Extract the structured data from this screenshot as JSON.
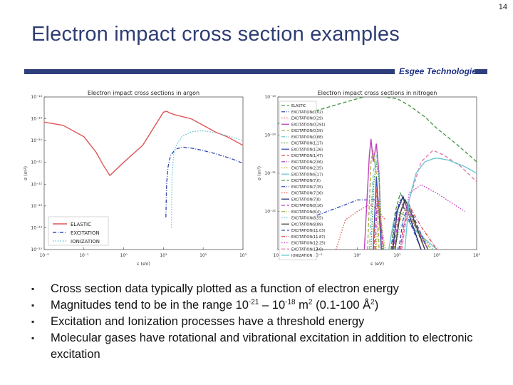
{
  "page": {
    "number": "14",
    "title": "Electron impact cross section examples",
    "brand": "Esgee Technologies"
  },
  "bullets": [
    {
      "text": "Cross section data typically plotted as a function of electron energy"
    },
    {
      "pre": "Magnitudes tend to be in the range 10",
      "sup1": "-21",
      "mid": " – 10",
      "sup2": "-18",
      "mid2": " m",
      "sup3": "2",
      "post": " (0.1-100 Å",
      "sup4": "2",
      "end": ")"
    },
    {
      "text": "Excitation and Ionization processes have a threshold energy"
    },
    {
      "text": "Molecular gases have rotational and vibrational excitation in addition to electronic excitation"
    }
  ],
  "chart_data": [
    {
      "type": "line",
      "title": "Electron impact cross sections in argon",
      "xlabel": "ε (eV)",
      "ylabel": "σ (m²)",
      "xscale": "log",
      "yscale": "log",
      "xlim": [
        0.01,
        1000
      ],
      "ylim": [
        1e-25,
        1e-18
      ],
      "xticks": [
        "10⁻²",
        "10⁻¹",
        "10⁰",
        "10¹",
        "10²",
        "10³"
      ],
      "yticks": [
        "10⁻¹⁸",
        "10⁻¹⁹",
        "10⁻²⁰",
        "10⁻²¹",
        "10⁻²²",
        "10⁻²³",
        "10⁻²⁴",
        "10⁻²⁵"
      ],
      "legend_position": "lower-left",
      "series": [
        {
          "name": "ELASTIC",
          "style": "solid",
          "color": "#e05555",
          "x": [
            0.01,
            0.03,
            0.1,
            0.2,
            0.3,
            0.45,
            1,
            3,
            10,
            12,
            15,
            20,
            50,
            100,
            200,
            400,
            1000
          ],
          "y": [
            7e-20,
            5e-20,
            1.5e-20,
            3e-21,
            8e-22,
            2.5e-22,
            1e-21,
            6e-21,
            2e-19,
            2.2e-19,
            1.8e-19,
            1.5e-19,
            1e-19,
            5e-20,
            2.5e-20,
            1.5e-20,
            6e-21
          ]
        },
        {
          "name": "EXCITATION",
          "style": "dashdot",
          "color": "#3b4fb8",
          "x": [
            11.5,
            12,
            13,
            15,
            20,
            30,
            50,
            100,
            200,
            500,
            1000
          ],
          "y": [
            3e-24,
            1e-22,
            6e-22,
            2e-21,
            4e-21,
            5e-21,
            4.5e-21,
            3.5e-21,
            2.5e-21,
            1.5e-21,
            9e-22
          ]
        },
        {
          "name": "IONIZATION",
          "style": "dotted",
          "color": "#6cc7d6",
          "x": [
            15.8,
            16.5,
            18,
            20,
            25,
            30,
            50,
            80,
            100,
            200,
            500,
            1000
          ],
          "y": [
            1e-24,
            3e-22,
            2e-21,
            5e-21,
            1e-20,
            1.6e-20,
            2.5e-20,
            2.8e-20,
            2.8e-20,
            2.3e-20,
            1.5e-20,
            1e-20
          ]
        }
      ]
    },
    {
      "type": "line",
      "title": "Electron impact cross sections in nitrogen",
      "xlabel": "ε (eV)",
      "ylabel": "σ (m²)",
      "xscale": "log",
      "yscale": "log",
      "xlim": [
        0.01,
        1000
      ],
      "ylim": [
        1e-22,
        1e-18
      ],
      "xticks": [
        "10⁻²",
        "10⁻¹",
        "10⁰",
        "10¹",
        "10²",
        "10³"
      ],
      "yticks": [
        "10⁻¹⁹",
        "10⁻²⁰",
        "10⁻²¹",
        "10⁻²²"
      ],
      "legend_position": "left",
      "series": [
        {
          "name": "ELASTIC",
          "style": "dashed",
          "color": "#4a9a4a",
          "x": [
            0.01,
            0.1,
            1,
            2,
            2.5,
            3,
            5,
            10,
            20,
            50,
            100,
            300,
            1000
          ],
          "y": [
            2e-19,
            4.5e-19,
            9e-19,
            1.1e-18,
            1.2e-18,
            1.1e-18,
            1e-18,
            9e-19,
            6e-19,
            3e-19,
            1.5e-19,
            6e-20,
            2e-20
          ]
        },
        {
          "name": "EXCITATION(0.02)",
          "style": "dashdot",
          "color": "#3b4fb8",
          "x": [
            0.02,
            0.05,
            0.1,
            0.5,
            1,
            3
          ],
          "y": [
            2e-22,
            5e-22,
            8e-22,
            1.5e-21,
            2e-21,
            2e-21
          ]
        },
        {
          "name": "EXCITATION(0.29)",
          "style": "dotted",
          "color": "#e05555",
          "x": [
            0.29,
            0.5,
            1,
            2,
            3,
            5
          ],
          "y": [
            1e-22,
            6e-22,
            1e-21,
            1.5e-21,
            1.2e-21,
            6e-22
          ]
        },
        {
          "name": "EXCITATION(0.291)",
          "style": "solid",
          "color": "#c040c0",
          "x": [
            1.5,
            2,
            2.2,
            2.5,
            3,
            3.5,
            4
          ],
          "y": [
            1e-22,
            3e-20,
            8e-20,
            2e-20,
            6e-20,
            1e-20,
            1e-22
          ]
        },
        {
          "name": "EXCITATION(0.59)",
          "style": "dashed",
          "color": "#b0b040",
          "x": [
            1.8,
            2.2,
            2.5,
            3,
            3.5
          ],
          "y": [
            1e-22,
            2e-20,
            4e-20,
            1e-20,
            1e-22
          ]
        },
        {
          "name": "EXCITATION(0.88)",
          "style": "dashdot",
          "color": "#6cc7d6",
          "x": [
            2,
            2.5,
            3,
            3.5,
            4
          ],
          "y": [
            1e-22,
            1e-20,
            3e-20,
            8e-21,
            1e-22
          ]
        },
        {
          "name": "EXCITATION(1.17)",
          "style": "dotted",
          "color": "#4a9a4a",
          "x": [
            2.2,
            2.6,
            3,
            3.6,
            4.2
          ],
          "y": [
            1e-22,
            6e-21,
            2e-20,
            5e-21,
            1e-22
          ]
        },
        {
          "name": "EXCITATION(1.26)",
          "style": "solid",
          "color": "#3b4fb8",
          "x": [
            2.5,
            3,
            3.5,
            4
          ],
          "y": [
            1e-22,
            8e-21,
            1e-21,
            1e-22
          ]
        },
        {
          "name": "EXCITATION(1.47)",
          "style": "dashed",
          "color": "#e05555",
          "x": [
            2.6,
            3,
            3.5,
            4.5
          ],
          "y": [
            1e-22,
            4e-21,
            1e-21,
            1e-22
          ]
        },
        {
          "name": "EXCITATION(2.06)",
          "style": "dashdot",
          "color": "#c040c0",
          "x": [
            2.8,
            3.2,
            3.8,
            4.6
          ],
          "y": [
            1e-22,
            3e-21,
            7e-22,
            1e-22
          ]
        },
        {
          "name": "EXCITATION(2.35)",
          "style": "dotted",
          "color": "#b0b040",
          "x": [
            3,
            3.5,
            4,
            5
          ],
          "y": [
            1e-22,
            2e-21,
            5e-22,
            1e-22
          ]
        },
        {
          "name": "EXCITATION(6.17)",
          "style": "solid",
          "color": "#6cc7d6",
          "x": [
            6.17,
            8,
            10,
            15,
            30,
            100
          ],
          "y": [
            1e-22,
            5e-22,
            1e-21,
            8e-22,
            3e-22,
            1e-22
          ]
        },
        {
          "name": "EXCITATION(7.0)",
          "style": "dashed",
          "color": "#4a9a4a",
          "x": [
            7,
            9,
            12,
            20,
            50
          ],
          "y": [
            1e-22,
            1e-21,
            3e-21,
            1e-21,
            1e-22
          ]
        },
        {
          "name": "EXCITATION(7.35)",
          "style": "dashdot",
          "color": "#3b4fb8",
          "x": [
            7.35,
            9,
            12,
            20,
            40
          ],
          "y": [
            1e-22,
            8e-22,
            2e-21,
            6e-22,
            1e-22
          ]
        },
        {
          "name": "EXCITATION(7.36)",
          "style": "dotted",
          "color": "#e05555",
          "x": [
            7.36,
            10,
            14,
            25,
            60
          ],
          "y": [
            1e-22,
            6e-22,
            1.5e-21,
            5e-22,
            1e-22
          ]
        },
        {
          "name": "EXCITATION(7.8)",
          "style": "solid",
          "color": "#2a2f7a",
          "x": [
            7.8,
            10,
            14,
            20,
            40
          ],
          "y": [
            1e-22,
            1e-21,
            2.5e-21,
            8e-22,
            1e-22
          ]
        },
        {
          "name": "EXCITATION(8.16)",
          "style": "dashed",
          "color": "#c040c0",
          "x": [
            8.16,
            11,
            15,
            25,
            60
          ],
          "y": [
            1e-22,
            7e-22,
            1.8e-21,
            6e-22,
            1e-22
          ]
        },
        {
          "name": "EXCITATION(8.4)",
          "style": "dashdot",
          "color": "#b0b040",
          "x": [
            8.4,
            11,
            16,
            30,
            70
          ],
          "y": [
            1e-22,
            5e-22,
            1.2e-21,
            4e-22,
            1e-22
          ]
        },
        {
          "name": "EXCITATION(8.55)",
          "style": "dotted",
          "color": "#6cc7d6",
          "x": [
            8.55,
            12,
            18,
            35,
            80
          ],
          "y": [
            1e-22,
            4e-22,
            1e-21,
            3e-22,
            1e-22
          ]
        },
        {
          "name": "EXCITATION(8.89)",
          "style": "solid",
          "color": "#444444",
          "x": [
            8.89,
            12,
            16,
            25,
            50
          ],
          "y": [
            1e-22,
            9e-22,
            2e-21,
            7e-22,
            1e-22
          ]
        },
        {
          "name": "EXCITATION(11.03)",
          "style": "dashed",
          "color": "#3b4fb8",
          "x": [
            11.03,
            14,
            20,
            30,
            60
          ],
          "y": [
            1e-22,
            6e-22,
            1.5e-21,
            5e-22,
            1e-22
          ]
        },
        {
          "name": "EXCITATION(11.87)",
          "style": "dashdot",
          "color": "#e05555",
          "x": [
            11.87,
            15,
            22,
            40,
            100
          ],
          "y": [
            1e-22,
            5e-22,
            1.2e-21,
            4e-22,
            1e-22
          ]
        },
        {
          "name": "EXCITATION(12.25)",
          "style": "dotted",
          "color": "#c040c0",
          "x": [
            12.25,
            20,
            40,
            100,
            500
          ],
          "y": [
            1e-22,
            3e-21,
            5e-21,
            3e-21,
            1e-21
          ]
        },
        {
          "name": "EXCITATION(13.0)",
          "style": "dashed",
          "color": "#e87ab0",
          "x": [
            13,
            20,
            40,
            80,
            150,
            400,
            1000
          ],
          "y": [
            1e-22,
            2e-21,
            2e-20,
            4e-20,
            3e-20,
            1.5e-20,
            6e-21
          ]
        },
        {
          "name": "IONIZATION",
          "style": "solid",
          "color": "#6cc7d6",
          "x": [
            15.6,
            20,
            30,
            50,
            80,
            100,
            200,
            500,
            1000
          ],
          "y": [
            1e-22,
            2e-21,
            1e-20,
            2e-20,
            2.4e-20,
            2.5e-20,
            2.2e-20,
            1.5e-20,
            1e-20
          ]
        }
      ]
    }
  ]
}
